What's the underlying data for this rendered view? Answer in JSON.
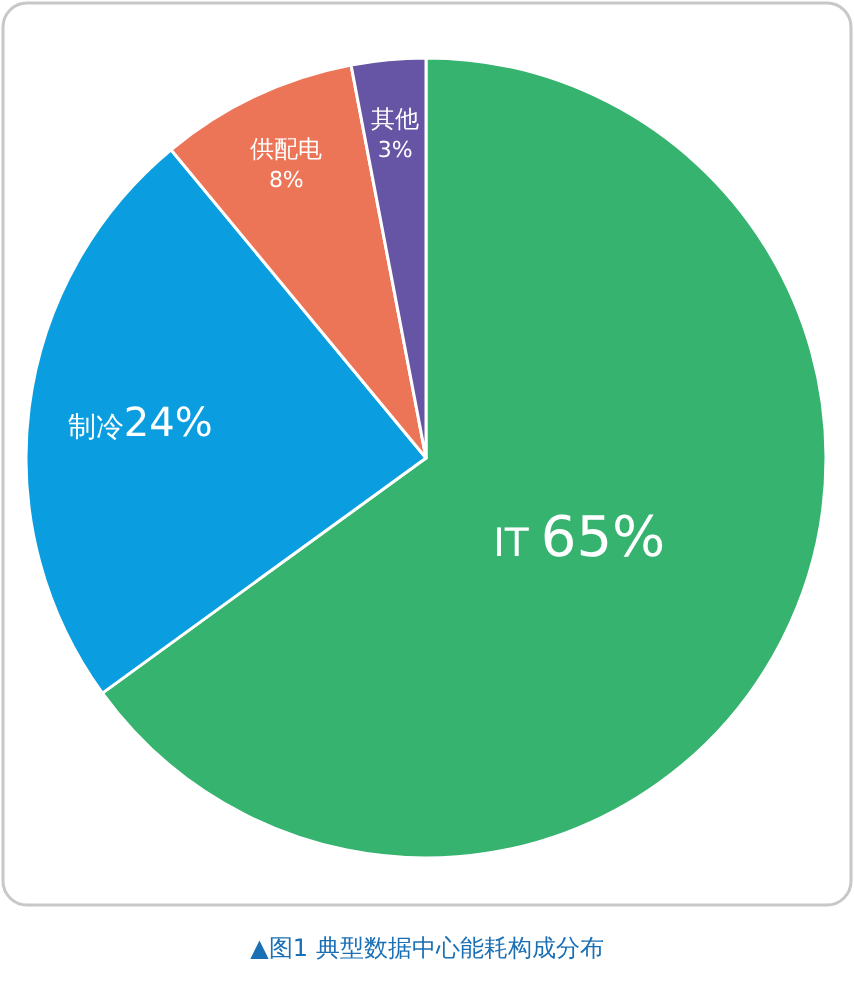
{
  "chart_data": {
    "type": "pie",
    "categories": [
      "IT",
      "制冷",
      "供配电",
      "其他"
    ],
    "values": [
      65,
      24,
      8,
      3
    ],
    "colors": [
      "#36b36f",
      "#0a9ee0",
      "#ec7457",
      "#6655a5"
    ],
    "value_labels": [
      "65%",
      "24%",
      "8%",
      "3%"
    ],
    "annotations": [
      "▲图1  典型数据中心能耗构成分布"
    ]
  }
}
